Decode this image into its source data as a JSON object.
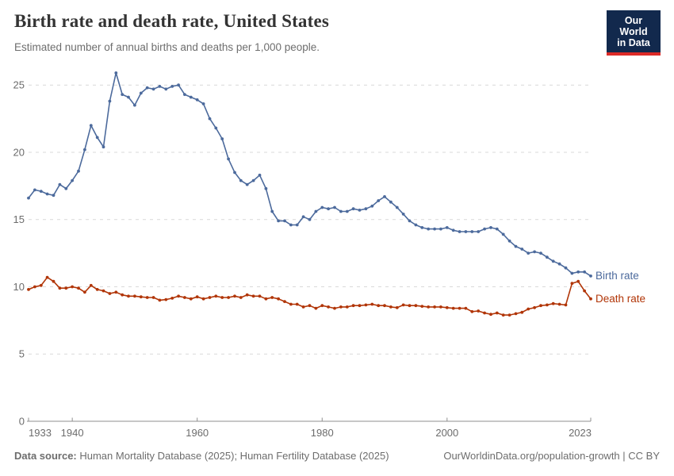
{
  "header": {
    "title": "Birth rate and death rate, United States",
    "subtitle": "Estimated number of annual births and deaths per 1,000 people.",
    "logo": {
      "line1": "Our World",
      "line2": "in Data",
      "bg_color": "#12294D",
      "bar_color": "#DC2A27"
    }
  },
  "chart_data": {
    "type": "line",
    "title": "Birth rate and death rate, United States",
    "subtitle": "Estimated number of annual births and deaths per 1,000 people.",
    "x": {
      "start": 1933,
      "end": 2023,
      "step": 1
    },
    "xlabel": "",
    "ylabel": "",
    "ylim": [
      0,
      25
    ],
    "yticks": [
      0,
      5,
      10,
      15,
      20,
      25
    ],
    "xticks": [
      1933,
      1940,
      1960,
      1980,
      2000,
      2023
    ],
    "grid": "horizontal-dashed",
    "legend_position": "end-of-line-labels",
    "series": [
      {
        "name": "Birth rate",
        "color": "#4C6A9C",
        "values": [
          16.6,
          17.2,
          17.1,
          16.9,
          16.8,
          17.6,
          17.3,
          17.9,
          18.6,
          20.2,
          22.0,
          21.1,
          20.4,
          23.8,
          25.9,
          24.3,
          24.1,
          23.5,
          24.4,
          24.8,
          24.7,
          24.9,
          24.7,
          24.9,
          25.0,
          24.3,
          24.1,
          23.9,
          23.6,
          22.5,
          21.8,
          21.0,
          19.5,
          18.5,
          17.9,
          17.6,
          17.9,
          18.3,
          17.3,
          15.6,
          14.9,
          14.9,
          14.6,
          14.6,
          15.2,
          15.0,
          15.6,
          15.9,
          15.8,
          15.9,
          15.6,
          15.6,
          15.8,
          15.7,
          15.8,
          16.0,
          16.4,
          16.7,
          16.3,
          15.9,
          15.4,
          14.9,
          14.6,
          14.4,
          14.3,
          14.3,
          14.3,
          14.4,
          14.2,
          14.1,
          14.1,
          14.1,
          14.1,
          14.3,
          14.4,
          14.3,
          13.9,
          13.4,
          13.0,
          12.8,
          12.5,
          12.6,
          12.5,
          12.2,
          11.9,
          11.7,
          11.4,
          11.0,
          11.1,
          11.1,
          10.8
        ]
      },
      {
        "name": "Death rate",
        "color": "#B13507",
        "values": [
          9.8,
          10.0,
          10.1,
          10.7,
          10.4,
          9.9,
          9.9,
          10.0,
          9.9,
          9.6,
          10.1,
          9.8,
          9.7,
          9.5,
          9.6,
          9.4,
          9.3,
          9.3,
          9.25,
          9.2,
          9.2,
          9.0,
          9.05,
          9.15,
          9.3,
          9.2,
          9.1,
          9.25,
          9.1,
          9.2,
          9.3,
          9.2,
          9.2,
          9.3,
          9.2,
          9.4,
          9.3,
          9.3,
          9.1,
          9.2,
          9.1,
          8.9,
          8.7,
          8.7,
          8.5,
          8.6,
          8.4,
          8.6,
          8.5,
          8.4,
          8.5,
          8.5,
          8.6,
          8.6,
          8.65,
          8.7,
          8.6,
          8.6,
          8.5,
          8.45,
          8.65,
          8.6,
          8.6,
          8.55,
          8.5,
          8.5,
          8.5,
          8.45,
          8.4,
          8.4,
          8.4,
          8.15,
          8.2,
          8.05,
          7.95,
          8.05,
          7.9,
          7.9,
          8.0,
          8.1,
          8.35,
          8.45,
          8.6,
          8.65,
          8.75,
          8.7,
          8.65,
          10.25,
          10.4,
          9.7,
          9.1
        ]
      }
    ]
  },
  "footer": {
    "source_label": "Data source:",
    "source_text": " Human Mortality Database (2025); Human Fertility Database (2025)",
    "link_text": "OurWorldinData.org/population-growth | CC BY"
  }
}
